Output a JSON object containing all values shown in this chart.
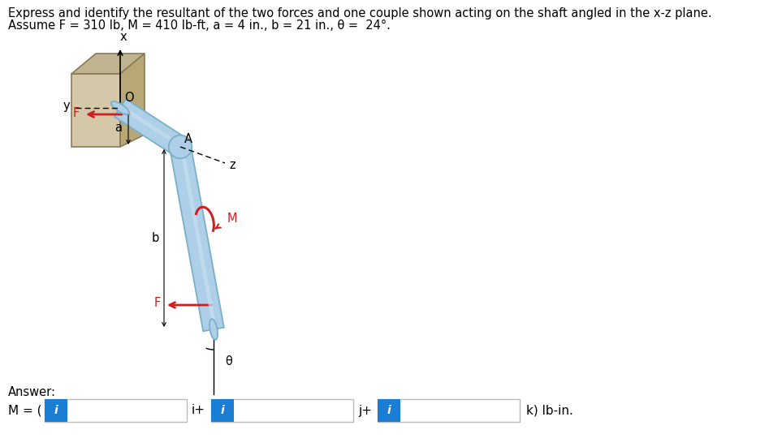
{
  "title_line1": "Express and identify the resultant of the two forces and one couple shown acting on the shaft angled in the x-z plane.",
  "title_line2": "Assume F = 310 lb, M = 410 lb-ft, a = 4 in., b = 21 in., θ =  24°.",
  "answer_label": "Answer:",
  "equation_start": "M = (",
  "end_label": "k) lb-in.",
  "bg_color": "#ffffff",
  "box_color": "#1a7fd4",
  "shaft_light": "#aecfe8",
  "shaft_dark": "#7aafc8",
  "shaft_mid": "#c8dff0",
  "wall_front": "#d4c8a8",
  "wall_top": "#c0b490",
  "wall_right": "#b8a878",
  "wall_edge": "#8a7a58",
  "arrow_color": "#cc2020",
  "text_color": "#000000",
  "label_x": "x",
  "label_y": "y",
  "label_z": "z",
  "label_O": "O",
  "label_A": "A",
  "label_F": "F",
  "label_M": "M",
  "label_a": "a",
  "label_b": "b",
  "label_theta": "θ"
}
